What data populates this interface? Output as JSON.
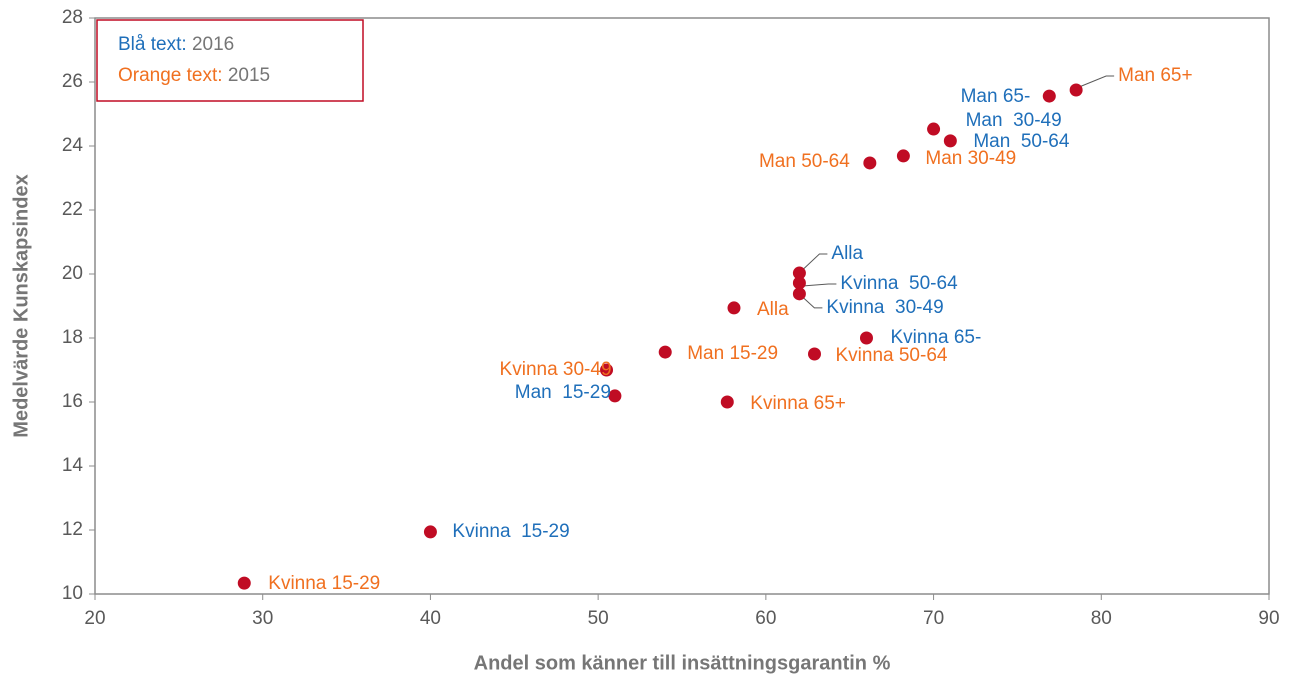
{
  "chart_data": {
    "type": "scatter",
    "xlabel": "Andel som känner till insättningsgarantin %",
    "ylabel": "Medelvärde Kunskapsindex",
    "xlim": [
      20,
      90
    ],
    "xticks": [
      20,
      30,
      40,
      50,
      60,
      70,
      80,
      90
    ],
    "ylim": [
      10,
      28
    ],
    "yticks": [
      10,
      12,
      14,
      16,
      18,
      20,
      22,
      24,
      26,
      28
    ],
    "marker_color": "#c00c24",
    "legend": {
      "position": "upper left",
      "items": [
        {
          "label": "Blå text:",
          "value": "2016",
          "color": "#1f6fba"
        },
        {
          "label": "Orange text:",
          "value": "2015",
          "color": "#f07020"
        }
      ]
    },
    "series": [
      {
        "name": "2016",
        "color": "#1f6fba",
        "labels": [
          "Kvinna  15-29",
          "Man  15-29",
          "Alla",
          "Kvinna  50-64",
          "Kvinna  30-49",
          "Kvinna 65-",
          "Man  30-49",
          "Man  50-64",
          "Man 65-"
        ],
        "x": [
          40.0,
          51.0,
          62.0,
          62.0,
          62.0,
          66.0,
          70.0,
          71.0,
          76.9
        ],
        "values": [
          11.94,
          16.19,
          20.03,
          19.72,
          19.38,
          18.0,
          24.53,
          24.16,
          25.56
        ]
      },
      {
        "name": "2015",
        "color": "#f07020",
        "labels": [
          "Kvinna 15-29",
          "Kvinna 30-49",
          "Man 15-29",
          "Kvinna 65+",
          "Alla",
          "Kvinna 50-64",
          "Man 50-64",
          "Man 30-49",
          "Man 65+"
        ],
        "x": [
          28.9,
          50.5,
          54.0,
          57.7,
          58.1,
          62.9,
          66.2,
          68.2,
          78.5
        ],
        "values": [
          10.34,
          17.0,
          17.56,
          16.0,
          18.94,
          17.5,
          23.47,
          23.69,
          25.75
        ]
      }
    ]
  }
}
